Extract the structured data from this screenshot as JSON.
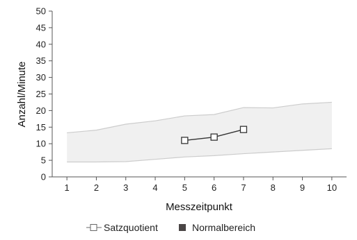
{
  "chart_data": {
    "type": "line",
    "xlabel": "Messzeitpunkt",
    "ylabel": "Anzahl/Minute",
    "x_ticks": [
      1,
      2,
      3,
      4,
      5,
      6,
      7,
      8,
      9,
      10
    ],
    "y_ticks": [
      0,
      5,
      10,
      15,
      20,
      25,
      30,
      35,
      40,
      45,
      50
    ],
    "xlim": [
      0.5,
      10.5
    ],
    "ylim": [
      0,
      50
    ],
    "grid": false,
    "legend_position": "bottom",
    "series": [
      {
        "name": "Satzquotient",
        "kind": "line-square-markers",
        "color": "#333333",
        "marker_fill": "#ffffff",
        "x": [
          5,
          6,
          7
        ],
        "y": [
          11,
          12,
          14.3
        ]
      },
      {
        "name": "Normalbereich",
        "kind": "band",
        "fill_color": "#f0f0f0",
        "line_color": "#cccccc",
        "legend_swatch_color": "#4a4545",
        "x": [
          1,
          2,
          3,
          4,
          5,
          6,
          7,
          8,
          9,
          10
        ],
        "lower": [
          4.5,
          4.5,
          4.6,
          5.3,
          6.0,
          6.4,
          7.0,
          7.5,
          8.0,
          8.5
        ],
        "upper": [
          13.3,
          14.1,
          15.9,
          16.9,
          18.4,
          18.8,
          20.9,
          20.8,
          22.0,
          22.5
        ]
      }
    ]
  }
}
